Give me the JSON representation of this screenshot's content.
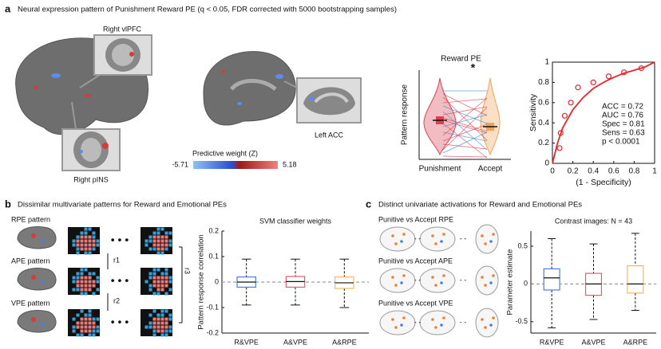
{
  "figure": {
    "panel_a": {
      "letter": "a",
      "title": "Neural expression pattern of Punishment Reward PE (q < 0.05, FDR corrected with 5000 bootstrapping samples)",
      "regions": [
        "Right  vlPFC",
        "Right  pINS",
        "Left ACC"
      ],
      "colorbar": {
        "title": "Predictive weight (Z)",
        "min": -5.71,
        "max": 5.18
      }
    },
    "panel_b": {
      "letter": "b",
      "title": "Dissimilar multivariate patterns for Reward and Emotional PEs",
      "patterns": [
        "RPE pattern",
        "APE pattern",
        "VPE pattern"
      ],
      "correlations": [
        "r1",
        "r2",
        "r3"
      ]
    },
    "panel_c": {
      "letter": "c",
      "title": "Distinct univariate activations for Reward and Emotional PEs",
      "contrasts": [
        "Punitive vs Accept RPE",
        "Punitive vs Accept APE",
        "Punitive vs Accept VPE"
      ]
    }
  },
  "chart_data": [
    {
      "type": "violin",
      "title": "Reward PE",
      "annotation": "*",
      "ylabel": "Pattern response",
      "categories": [
        "Punishment",
        "Accept"
      ],
      "colors": [
        "#d9434f",
        "#f2a35a"
      ]
    },
    {
      "type": "roc",
      "xlabel": "(1 - Specificity)",
      "ylabel": "Sensitivity",
      "color": "#e3262b",
      "xlim": [
        0,
        1
      ],
      "ylim": [
        0,
        1
      ],
      "xticks": [
        0,
        0.2,
        0.4,
        0.6,
        0.8,
        1
      ],
      "yticks": [
        0,
        0.2,
        0.4,
        0.6,
        0.8,
        1
      ],
      "points": {
        "x": [
          0.07,
          0.08,
          0.12,
          0.18,
          0.25,
          0.4,
          0.55,
          0.7,
          0.87
        ],
        "y": [
          0.15,
          0.3,
          0.47,
          0.6,
          0.75,
          0.8,
          0.86,
          0.9,
          0.94
        ]
      },
      "curve": {
        "x": [
          0,
          0.05,
          0.1,
          0.2,
          0.3,
          0.4,
          0.5,
          0.6,
          0.7,
          0.8,
          0.9,
          1
        ],
        "y": [
          0,
          0.2,
          0.35,
          0.53,
          0.65,
          0.74,
          0.8,
          0.85,
          0.89,
          0.92,
          0.95,
          1
        ]
      },
      "stats": [
        "ACC = 0.72",
        "AUC = 0.76",
        "Spec = 0.81",
        "Sens = 0.63",
        "p < 0.0001"
      ]
    },
    {
      "type": "box",
      "title": "SVM classifier weights",
      "ylabel": "Pattern response correlation",
      "categories": [
        "R&VPE",
        "A&VPE",
        "A&RPE"
      ],
      "colors": [
        "#4a7fe0",
        "#e0606e",
        "#f4b862"
      ],
      "whislo": [
        -0.09,
        -0.09,
        -0.1
      ],
      "q1": [
        -0.02,
        -0.02,
        -0.025
      ],
      "med": [
        0,
        0.002,
        -0.003
      ],
      "q3": [
        0.02,
        0.022,
        0.02
      ],
      "whishi": [
        0.09,
        0.09,
        0.09
      ],
      "ylim": [
        -0.2,
        0.2
      ],
      "yticks": [
        -0.2,
        -0.1,
        0,
        0.1,
        0.2
      ],
      "zero_line": true
    },
    {
      "type": "box",
      "title": "Contrast images: N = 43",
      "ylabel": "Parameter estimate",
      "categories": [
        "R&VPE",
        "A&VPE",
        "A&RPE"
      ],
      "colors": [
        "#4a7fe0",
        "#e0606e",
        "#f4b862"
      ],
      "whislo": [
        -0.58,
        -0.47,
        -0.35
      ],
      "q1": [
        -0.08,
        -0.15,
        -0.12
      ],
      "med": [
        0.08,
        0,
        0
      ],
      "q3": [
        0.2,
        0.14,
        0.24
      ],
      "whishi": [
        0.6,
        0.53,
        0.67
      ],
      "ylim": [
        -0.65,
        0.7
      ],
      "yticks": [
        -0.5,
        0,
        0.5
      ],
      "zero_line": true
    }
  ]
}
